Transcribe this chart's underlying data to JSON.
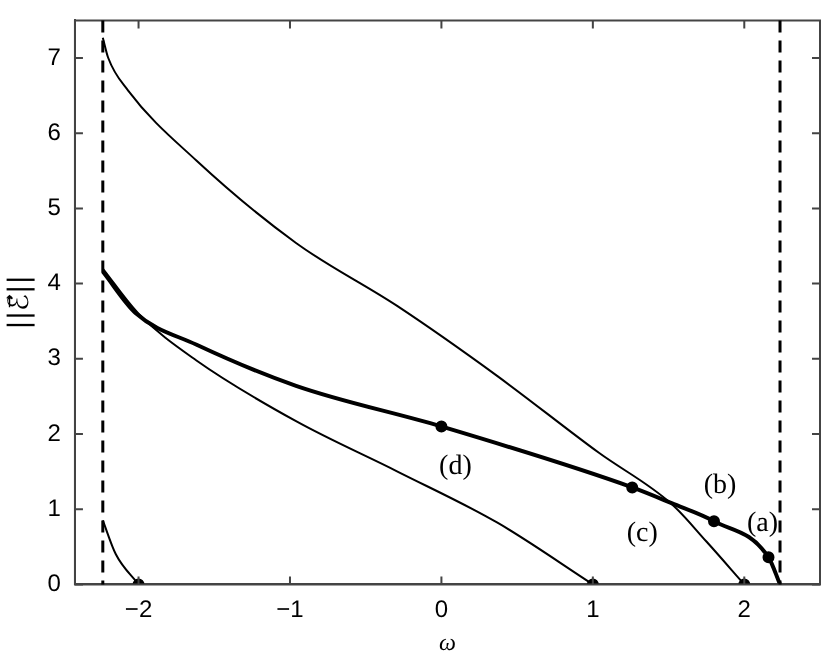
{
  "chart_data": {
    "type": "line",
    "xlabel": "ω",
    "ylabel": "||ℰ⃗||",
    "xlim": [
      -2.42,
      2.5
    ],
    "ylim": [
      0,
      7.5
    ],
    "xticks": [
      -2,
      -1,
      0,
      1,
      2
    ],
    "yticks": [
      0,
      1,
      2,
      3,
      4,
      5,
      6,
      7
    ],
    "grid": false,
    "legend": false,
    "marker": "none",
    "line_style": "solid",
    "series": [
      {
        "color": "#000000",
        "x": [
          -2.236,
          -2.2,
          -2.07,
          -1.62,
          -0.96,
          -0.29,
          0.37,
          1.04,
          1.52,
          1.75,
          2.0
        ],
        "values": [
          7.27,
          7.0,
          6.57,
          5.64,
          4.54,
          3.7,
          2.77,
          1.75,
          1.07,
          0.57,
          0
        ]
      },
      {
        "color": "#000000",
        "x": [
          -2.236,
          -2.02,
          -1.62,
          -0.96,
          0,
          1.26,
          1.52,
          1.8,
          2.16,
          2.236
        ],
        "values": [
          4.16,
          3.61,
          3.19,
          2.64,
          2.1,
          1.29,
          1.08,
          0.84,
          0.36,
          0
        ]
      },
      {
        "color": "#000000",
        "x": [
          -2.236,
          -2.0,
          -1.62,
          -0.96,
          -0.29,
          0.37,
          1.0
        ],
        "values": [
          4.2,
          3.6,
          2.98,
          2.17,
          1.5,
          0.82,
          0
        ]
      },
      {
        "color": "#000000",
        "x": [
          -2.236,
          -2.15,
          -2.0
        ],
        "values": [
          0.85,
          0.4,
          0
        ]
      },
      {
        "type": "scatter",
        "marker": "circle",
        "color": "#000000",
        "x": [
          -2,
          1,
          2,
          0,
          1.26,
          1.8,
          2.16
        ],
        "values": [
          0,
          0,
          0,
          2.1,
          1.29,
          0.84,
          0.36
        ]
      }
    ],
    "ref_lines": [
      {
        "axis": "x",
        "value": -2.236,
        "line_style": "dashed",
        "color": "#000000"
      },
      {
        "axis": "x",
        "value": 2.236,
        "line_style": "dashed",
        "color": "#000000"
      }
    ],
    "annotations": [
      {
        "text": "(a)",
        "x": 2.16,
        "y": 0.36
      },
      {
        "text": "(b)",
        "x": 1.8,
        "y": 0.84
      },
      {
        "text": "(c)",
        "x": 1.26,
        "y": 1.29
      },
      {
        "text": "(d)",
        "x": 0,
        "y": 2.1
      }
    ]
  }
}
